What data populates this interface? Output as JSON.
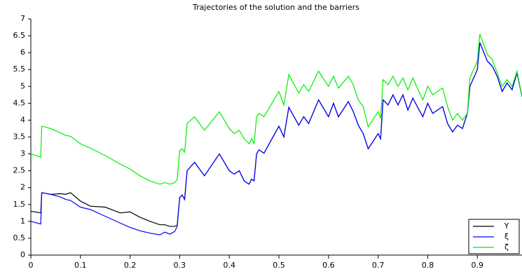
{
  "chart_data": {
    "type": "line",
    "title": "Trajectories of the solution and the barriers",
    "x": [
      0,
      0.02,
      0.022,
      0.04,
      0.06,
      0.07,
      0.08,
      0.1,
      0.12,
      0.15,
      0.18,
      0.2,
      0.22,
      0.24,
      0.26,
      0.27,
      0.28,
      0.29,
      0.295,
      0.3,
      0.305,
      0.31,
      0.315,
      0.33,
      0.35,
      0.38,
      0.4,
      0.41,
      0.42,
      0.43,
      0.44,
      0.445,
      0.45,
      0.455,
      0.46,
      0.47,
      0.5,
      0.51,
      0.52,
      0.54,
      0.55,
      0.56,
      0.58,
      0.6,
      0.61,
      0.62,
      0.64,
      0.65,
      0.66,
      0.67,
      0.68,
      0.7,
      0.705,
      0.71,
      0.72,
      0.73,
      0.74,
      0.75,
      0.76,
      0.77,
      0.79,
      0.8,
      0.81,
      0.83,
      0.84,
      0.85,
      0.86,
      0.87,
      0.88,
      0.885,
      0.9,
      0.905,
      0.92,
      0.93,
      0.94,
      0.95,
      0.96,
      0.97,
      0.98,
      0.99
    ],
    "series": [
      {
        "name": "Y",
        "color": "#000000",
        "values": [
          1.3,
          1.25,
          1.85,
          1.8,
          1.82,
          1.8,
          1.85,
          1.6,
          1.45,
          1.42,
          1.25,
          1.28,
          1.12,
          1.0,
          0.9,
          0.9,
          0.85,
          0.85,
          0.88,
          1.7,
          1.78,
          1.65,
          2.5,
          2.75,
          2.35,
          3.0,
          2.5,
          2.4,
          2.5,
          2.2,
          2.1,
          2.25,
          2.2,
          3.0,
          3.12,
          3.02,
          3.82,
          3.5,
          4.38,
          3.85,
          4.1,
          3.9,
          4.6,
          4.1,
          4.5,
          4.1,
          4.55,
          4.25,
          3.85,
          3.6,
          3.15,
          3.6,
          3.45,
          4.6,
          4.45,
          4.75,
          4.45,
          4.75,
          4.3,
          4.65,
          4.1,
          4.5,
          4.2,
          4.4,
          3.9,
          3.65,
          3.85,
          3.75,
          4.2,
          5.0,
          5.5,
          6.3,
          5.75,
          5.6,
          5.3,
          4.85,
          5.1,
          4.9,
          5.4,
          4.7
        ]
      },
      {
        "name": "ξ",
        "color": "#0000ff",
        "values": [
          1.0,
          0.92,
          1.85,
          1.8,
          1.72,
          1.65,
          1.62,
          1.42,
          1.35,
          1.15,
          0.95,
          0.82,
          0.72,
          0.65,
          0.6,
          0.68,
          0.62,
          0.7,
          0.85,
          1.7,
          1.78,
          1.65,
          2.5,
          2.75,
          2.35,
          3.0,
          2.5,
          2.4,
          2.5,
          2.2,
          2.1,
          2.25,
          2.2,
          3.0,
          3.12,
          3.02,
          3.82,
          3.5,
          4.38,
          3.85,
          4.1,
          3.9,
          4.6,
          4.1,
          4.5,
          4.1,
          4.55,
          4.25,
          3.85,
          3.6,
          3.15,
          3.6,
          3.45,
          4.6,
          4.45,
          4.75,
          4.45,
          4.75,
          4.3,
          4.65,
          4.1,
          4.5,
          4.2,
          4.4,
          3.9,
          3.65,
          3.85,
          3.75,
          4.2,
          5.0,
          5.5,
          6.3,
          5.75,
          5.6,
          5.3,
          4.85,
          5.1,
          4.9,
          5.4,
          4.7
        ]
      },
      {
        "name": "ζ",
        "color": "#00ee00",
        "values": [
          3.0,
          2.9,
          3.82,
          3.75,
          3.62,
          3.55,
          3.52,
          3.3,
          3.17,
          2.95,
          2.7,
          2.55,
          2.35,
          2.2,
          2.1,
          2.15,
          2.1,
          2.15,
          2.25,
          3.1,
          3.15,
          3.05,
          3.9,
          4.1,
          3.7,
          4.25,
          3.75,
          3.6,
          3.7,
          3.45,
          3.3,
          3.45,
          3.3,
          4.1,
          4.2,
          4.1,
          4.85,
          4.45,
          5.35,
          4.8,
          5.05,
          4.85,
          5.45,
          5.0,
          5.3,
          4.95,
          5.3,
          5.05,
          4.6,
          4.4,
          3.8,
          4.25,
          4.05,
          5.2,
          5.05,
          5.3,
          5.0,
          5.25,
          4.9,
          5.25,
          4.6,
          5.0,
          4.75,
          4.95,
          4.4,
          4.0,
          4.2,
          4.0,
          4.2,
          5.25,
          5.75,
          6.55,
          5.95,
          5.8,
          5.4,
          5.0,
          5.2,
          5.0,
          5.45,
          4.7
        ]
      }
    ],
    "xlim": [
      0,
      0.99
    ],
    "xticks": [
      0,
      0.1,
      0.2,
      0.3,
      0.4,
      0.5,
      0.6,
      0.7,
      0.8,
      0.9
    ],
    "ylim": [
      0,
      7
    ],
    "yticks": [
      0,
      0.5,
      1,
      1.5,
      2,
      2.5,
      3,
      3.5,
      4,
      4.5,
      5,
      5.5,
      6,
      6.5,
      7
    ],
    "legend": "lower right"
  }
}
